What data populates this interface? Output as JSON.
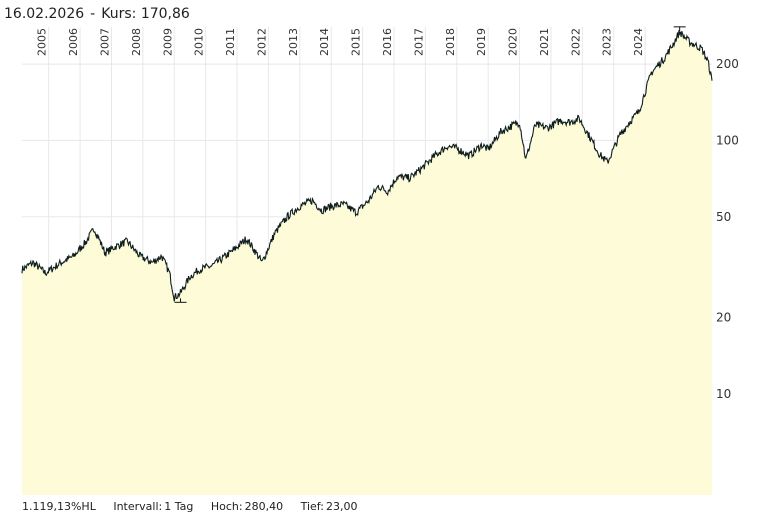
{
  "header": {
    "date": "16.02.2026",
    "separator": "-",
    "price_label": "Kurs:",
    "price_value": "170,86"
  },
  "footer": {
    "performance": "1.119,13%HL",
    "interval_label": "Intervall:",
    "interval_value": "1 Tag",
    "high_label": "Hoch:",
    "high_value": "280,40",
    "low_label": "Tief:",
    "low_value": "23,00"
  },
  "chart_data": {
    "type": "area",
    "title": "",
    "xlabel": "",
    "ylabel": "",
    "yscale": "log",
    "ylim": [
      4,
      280
    ],
    "y_ticks": [
      10,
      20,
      50,
      100,
      200
    ],
    "x_ticks": [
      "2005",
      "2006",
      "2007",
      "2008",
      "2009",
      "2010",
      "2011",
      "2012",
      "2013",
      "2014",
      "2015",
      "2016",
      "2017",
      "2018",
      "2019",
      "2020",
      "2021",
      "2022",
      "2023",
      "2024"
    ],
    "xlim": [
      2004.15,
      2026.13
    ],
    "grid": true,
    "colors": {
      "line": "#0e1e1e",
      "fill": "#fefbd8",
      "grid": "#e8e8e8"
    },
    "x": [
      2004.15,
      2004.5,
      2004.9,
      2005.4,
      2005.8,
      2006.2,
      2006.45,
      2006.8,
      2007.1,
      2007.5,
      2007.9,
      2008.3,
      2008.6,
      2008.85,
      2009.0,
      2009.2,
      2009.5,
      2009.8,
      2010.2,
      2010.5,
      2010.9,
      2011.3,
      2011.55,
      2011.8,
      2012.2,
      2012.6,
      2013.0,
      2013.4,
      2013.7,
      2014.0,
      2014.4,
      2014.8,
      2015.2,
      2015.5,
      2015.8,
      2016.1,
      2016.5,
      2016.9,
      2017.3,
      2017.7,
      2018.0,
      2018.4,
      2018.8,
      2019.0,
      2019.4,
      2019.8,
      2020.0,
      2020.2,
      2020.5,
      2020.9,
      2021.3,
      2021.6,
      2021.9,
      2022.3,
      2022.55,
      2022.8,
      2023.2,
      2023.5,
      2023.8,
      2024.2,
      2024.6,
      2024.85,
      2025.1,
      2025.4,
      2025.8,
      2026.0,
      2026.13
    ],
    "values": [
      31,
      33,
      30,
      33,
      35,
      40,
      45,
      36,
      38,
      40,
      35,
      33,
      35,
      30,
      24,
      25,
      29,
      31,
      32,
      34,
      37,
      41,
      37,
      33,
      43,
      50,
      55,
      58,
      53,
      55,
      56,
      52,
      58,
      66,
      63,
      72,
      71,
      78,
      87,
      95,
      93,
      87,
      96,
      92,
      108,
      115,
      118,
      84,
      115,
      112,
      120,
      118,
      122,
      100,
      88,
      82,
      105,
      118,
      130,
      185,
      210,
      235,
      268,
      245,
      230,
      205,
      172
    ]
  }
}
